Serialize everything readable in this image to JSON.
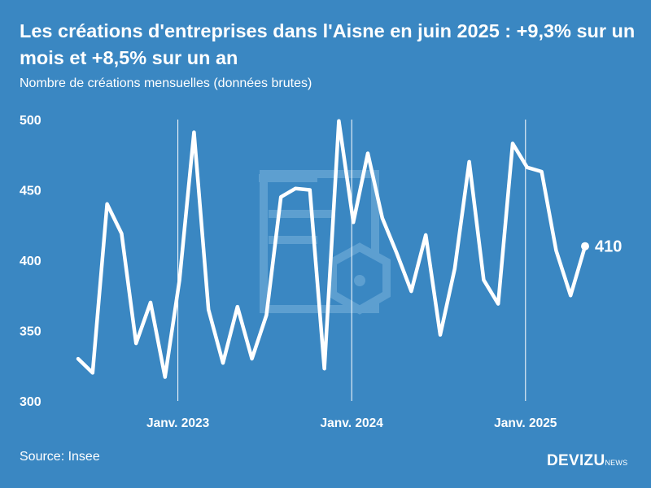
{
  "header": {
    "title": "Les créations d'entreprises dans l'Aisne en juin 2025 : +9,3% sur un mois et +8,5% sur un an",
    "subtitle": "Nombre de créations mensuelles (données brutes)"
  },
  "footer": {
    "source": "Source: Insee",
    "brand_main": "DEVIZU",
    "brand_sub": "NEWS"
  },
  "colors": {
    "background": "#3a87c2",
    "line": "#ffffff",
    "watermark": "#5d9fd0"
  },
  "chart_data": {
    "type": "line",
    "title": "Les créations d'entreprises dans l'Aisne en juin 2025 : +9,3% sur un mois et +8,5% sur un an",
    "subtitle": "Nombre de créations mensuelles (données brutes)",
    "y_ticks": [
      500,
      450,
      400,
      350,
      300
    ],
    "ylim": [
      300,
      500
    ],
    "x_ticks": [
      {
        "label": "Janv. 2023",
        "index": 7
      },
      {
        "label": "Janv. 2024",
        "index": 19
      },
      {
        "label": "Janv. 2025",
        "index": 31
      }
    ],
    "grid": false,
    "series": [
      {
        "values": [
          330,
          320,
          440,
          419,
          341,
          370,
          317,
          386,
          491,
          365,
          327,
          367,
          330,
          361,
          445,
          451,
          450,
          323,
          499,
          427,
          476,
          430,
          405,
          378,
          418,
          347,
          394,
          470,
          386,
          369,
          483,
          466,
          463,
          407,
          375,
          410
        ]
      }
    ],
    "end_label": "410"
  }
}
